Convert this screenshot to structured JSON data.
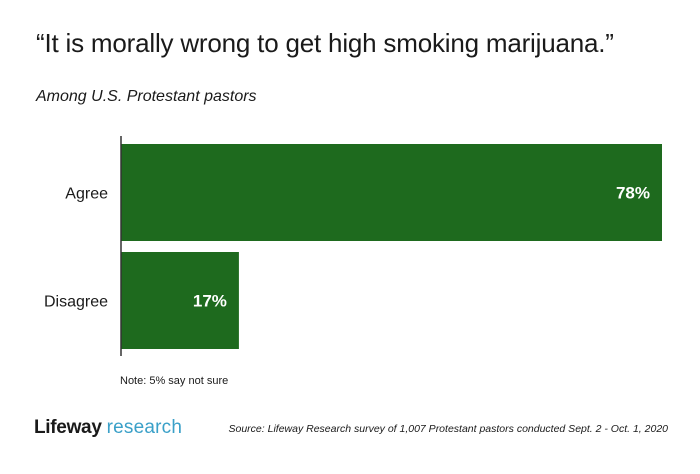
{
  "title": "“It is morally wrong to get high smoking marijuana.”",
  "subtitle": "Among U.S. Protestant pastors",
  "note": "Note: 5% say not sure",
  "source": "Source: Lifeway Research survey of 1,007 Protestant pastors conducted Sept. 2 - Oct. 1, 2020",
  "logo": {
    "brand": "Lifeway",
    "sub": "research"
  },
  "colors": {
    "bar": "#1e6a1e",
    "axis": "#333333",
    "label_text": "#ffffff",
    "logo_sub": "#3aa0c8"
  },
  "chart_data": {
    "type": "bar",
    "orientation": "horizontal",
    "categories": [
      "Agree",
      "Disagree"
    ],
    "values": [
      78,
      17
    ],
    "value_labels": [
      "78%",
      "17%"
    ],
    "unit": "%",
    "xlim": [
      0,
      78
    ],
    "grid": false,
    "legend": "none"
  }
}
